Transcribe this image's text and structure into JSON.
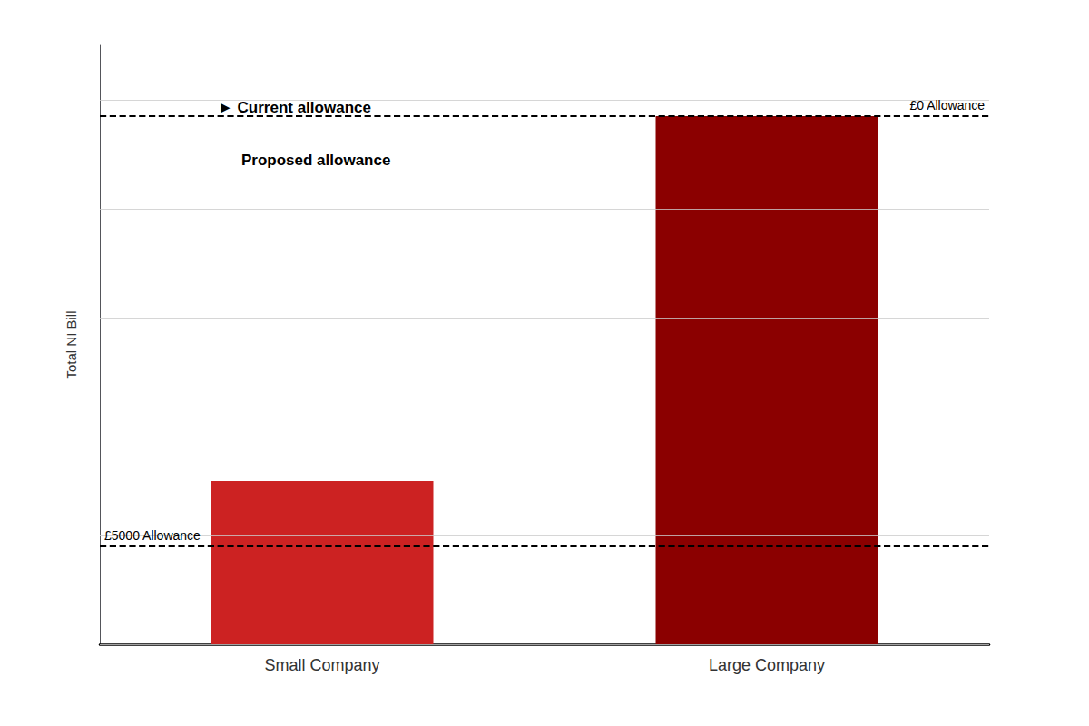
{
  "chart_data": {
    "type": "bar",
    "categories": [
      "Small Company",
      "Large Company"
    ],
    "values": [
      0.3,
      0.97
    ],
    "colors": [
      "#cc2222",
      "#8b0000"
    ],
    "ylabel": "Total NI Bill",
    "ylim": [
      0,
      1.1
    ],
    "yticks": [
      0,
      0.2,
      0.4,
      0.6,
      0.8,
      1.0
    ],
    "grid": true,
    "tick_labels": "x",
    "annotations": [
      {
        "text": "£5000 Allowance",
        "y": 0.185
      },
      {
        "text": "£0 Allowance",
        "y": 0.97
      },
      {
        "text": "► Current allowance"
      },
      {
        "text": "Proposed allowance"
      }
    ]
  }
}
